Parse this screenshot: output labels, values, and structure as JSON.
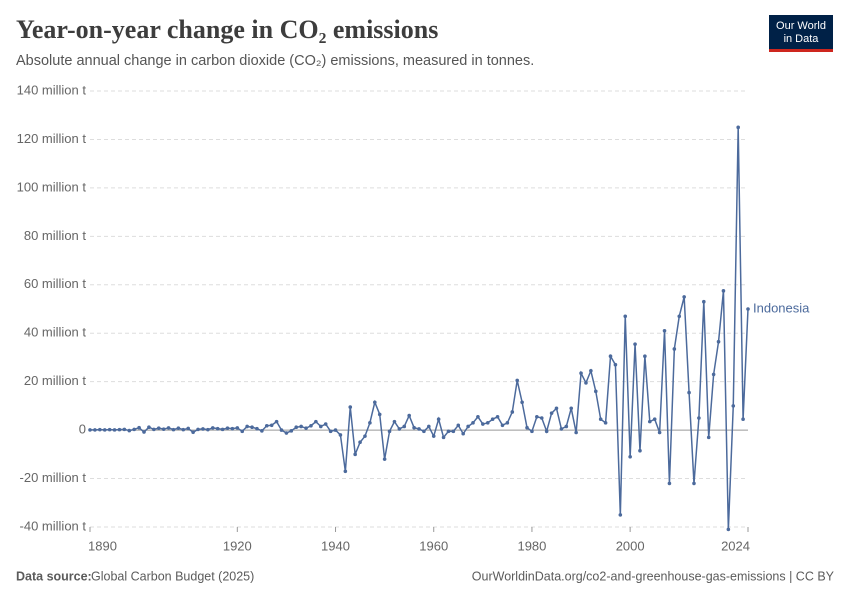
{
  "chart_data": {
    "type": "line",
    "title": "Year-on-year change in CO₂ emissions",
    "subtitle": "Absolute annual change in carbon dioxide (CO₂) emissions, measured in tonnes.",
    "logo": [
      "Our World",
      "in Data"
    ],
    "source_label": "Data source:",
    "source": "Global Carbon Budget (2025)",
    "url": "OurWorldinData.org/co2-and-greenhouse-gas-emissions | CC BY",
    "xlim": [
      1890,
      2024
    ],
    "xticks": [
      1890,
      1920,
      1940,
      1960,
      1980,
      2000,
      2024
    ],
    "ylim": [
      -40,
      140
    ],
    "yticks": [
      {
        "value": -40,
        "label": "-40 million t"
      },
      {
        "value": -20,
        "label": "-20 million t"
      },
      0,
      {
        "value": 20,
        "label": "20 million t"
      },
      {
        "value": 40,
        "label": "40 million t"
      },
      {
        "value": 60,
        "label": "60 million t"
      },
      {
        "value": 80,
        "label": "80 million t"
      },
      {
        "value": 100,
        "label": "100 million t"
      },
      {
        "value": 120,
        "label": "120 million t"
      },
      {
        "value": 140,
        "label": "140 million t"
      }
    ],
    "grid": true,
    "x": [
      1890,
      1891,
      1892,
      1893,
      1894,
      1895,
      1896,
      1897,
      1898,
      1899,
      1900,
      1901,
      1902,
      1903,
      1904,
      1905,
      1906,
      1907,
      1908,
      1909,
      1910,
      1911,
      1912,
      1913,
      1914,
      1915,
      1916,
      1917,
      1918,
      1919,
      1920,
      1921,
      1922,
      1923,
      1924,
      1925,
      1926,
      1927,
      1928,
      1929,
      1930,
      1931,
      1932,
      1933,
      1934,
      1935,
      1936,
      1937,
      1938,
      1939,
      1940,
      1941,
      1942,
      1943,
      1944,
      1945,
      1946,
      1947,
      1948,
      1949,
      1950,
      1951,
      1952,
      1953,
      1954,
      1955,
      1956,
      1957,
      1958,
      1959,
      1960,
      1961,
      1962,
      1963,
      1964,
      1965,
      1966,
      1967,
      1968,
      1969,
      1970,
      1971,
      1972,
      1973,
      1974,
      1975,
      1976,
      1977,
      1978,
      1979,
      1980,
      1981,
      1982,
      1983,
      1984,
      1985,
      1986,
      1987,
      1988,
      1989,
      1990,
      1991,
      1992,
      1993,
      1994,
      1995,
      1996,
      1997,
      1998,
      1999,
      2000,
      2001,
      2002,
      2003,
      2004,
      2005,
      2006,
      2007,
      2008,
      2009,
      2010,
      2011,
      2012,
      2013,
      2014,
      2015,
      2016,
      2017,
      2018,
      2019,
      2020,
      2021,
      2022,
      2023,
      2024
    ],
    "series": [
      {
        "name": "Indonesia",
        "color": "#4c6a9c",
        "values": [
          0.1,
          0.1,
          0.2,
          0.1,
          0.2,
          0.1,
          0.2,
          0.3,
          -0.2,
          0.3,
          1.0,
          -0.8,
          1.2,
          0.3,
          0.8,
          0.4,
          0.9,
          0.2,
          0.8,
          0.2,
          0.7,
          -0.9,
          0.3,
          0.5,
          0.2,
          0.9,
          0.6,
          0.3,
          0.8,
          0.6,
          0.9,
          -0.5,
          1.5,
          1.2,
          0.6,
          -0.3,
          1.8,
          2.0,
          3.5,
          0.0,
          -1.2,
          -0.3,
          1.2,
          1.5,
          0.8,
          1.8,
          3.5,
          1.5,
          2.5,
          -0.5,
          0,
          -2,
          -17,
          9.5,
          -10,
          -5,
          -2.5,
          3,
          11.5,
          6.5,
          -12,
          -0.5,
          3.5,
          0.5,
          1.5,
          6,
          1,
          0.5,
          -0.5,
          1.5,
          -2.5,
          4.5,
          -3,
          -0.5,
          -0.5,
          2,
          -1.5,
          1.5,
          3,
          5.5,
          2.5,
          3,
          4.5,
          5.5,
          2,
          3,
          7.5,
          20.5,
          11.5,
          1,
          -0.5,
          5.5,
          5,
          -0.5,
          7,
          9,
          0.5,
          1.5,
          9,
          -1,
          23.5,
          19.5,
          24.5,
          16,
          4.5,
          3,
          30.5,
          27,
          -35,
          47,
          -11,
          35.5,
          -8.5,
          30.5,
          3.5,
          4.5,
          -1,
          41,
          -22,
          33.5,
          47,
          55,
          15.5,
          -22,
          5,
          53,
          -3,
          23,
          36.5,
          57.5,
          -41,
          10,
          125,
          4.5,
          50
        ]
      }
    ]
  }
}
